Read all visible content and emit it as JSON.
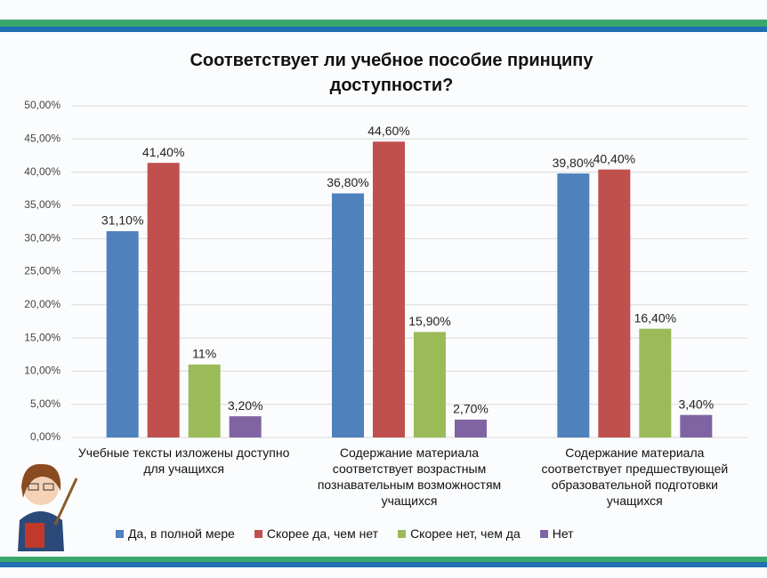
{
  "chart_data": {
    "type": "bar",
    "title": "Соответствует ли учебное пособие принципу доступности?",
    "categories": [
      "Учебные тексты изложены доступно для учащихся",
      "Содержание материала соответствует возрастным познавательным возможностям учащихся",
      "Содержание материала соответствует предшествующей образовательной подготовки учащихся"
    ],
    "series": [
      {
        "name": "Да, в полной мере",
        "color": "#4f81bd",
        "values": [
          31.1,
          36.8,
          39.8
        ],
        "value_labels": [
          "31,10%",
          "36,80%",
          "39,80%"
        ]
      },
      {
        "name": "Скорее да, чем нет",
        "color": "#c0504d",
        "values": [
          41.4,
          44.6,
          40.4
        ],
        "value_labels": [
          "41,40%",
          "44,60%",
          "40,40%"
        ]
      },
      {
        "name": "Скорее нет, чем да",
        "color": "#9bbb59",
        "values": [
          11,
          15.9,
          16.4
        ],
        "value_labels": [
          "11%",
          "15,90%",
          "16,40%"
        ]
      },
      {
        "name": "Нет",
        "color": "#8064a2",
        "values": [
          3.2,
          2.7,
          3.4
        ],
        "value_labels": [
          "3,20%",
          "2,70%",
          "3,40%"
        ]
      }
    ],
    "ylim": [
      0,
      50
    ],
    "yticks": [
      {
        "value": 0,
        "label": "0,00%"
      },
      {
        "value": 5,
        "label": "5,00%"
      },
      {
        "value": 10,
        "label": "10,00%"
      },
      {
        "value": 15,
        "label": "15,00%"
      },
      {
        "value": 20,
        "label": "20,00%"
      },
      {
        "value": 25,
        "label": "25,00%"
      },
      {
        "value": 30,
        "label": "30,00%"
      },
      {
        "value": 35,
        "label": "35,00%"
      },
      {
        "value": 40,
        "label": "40,00%"
      },
      {
        "value": 45,
        "label": "45,00%"
      },
      {
        "value": 50,
        "label": "50,00%"
      }
    ],
    "grid": true,
    "legend": "bottom"
  }
}
